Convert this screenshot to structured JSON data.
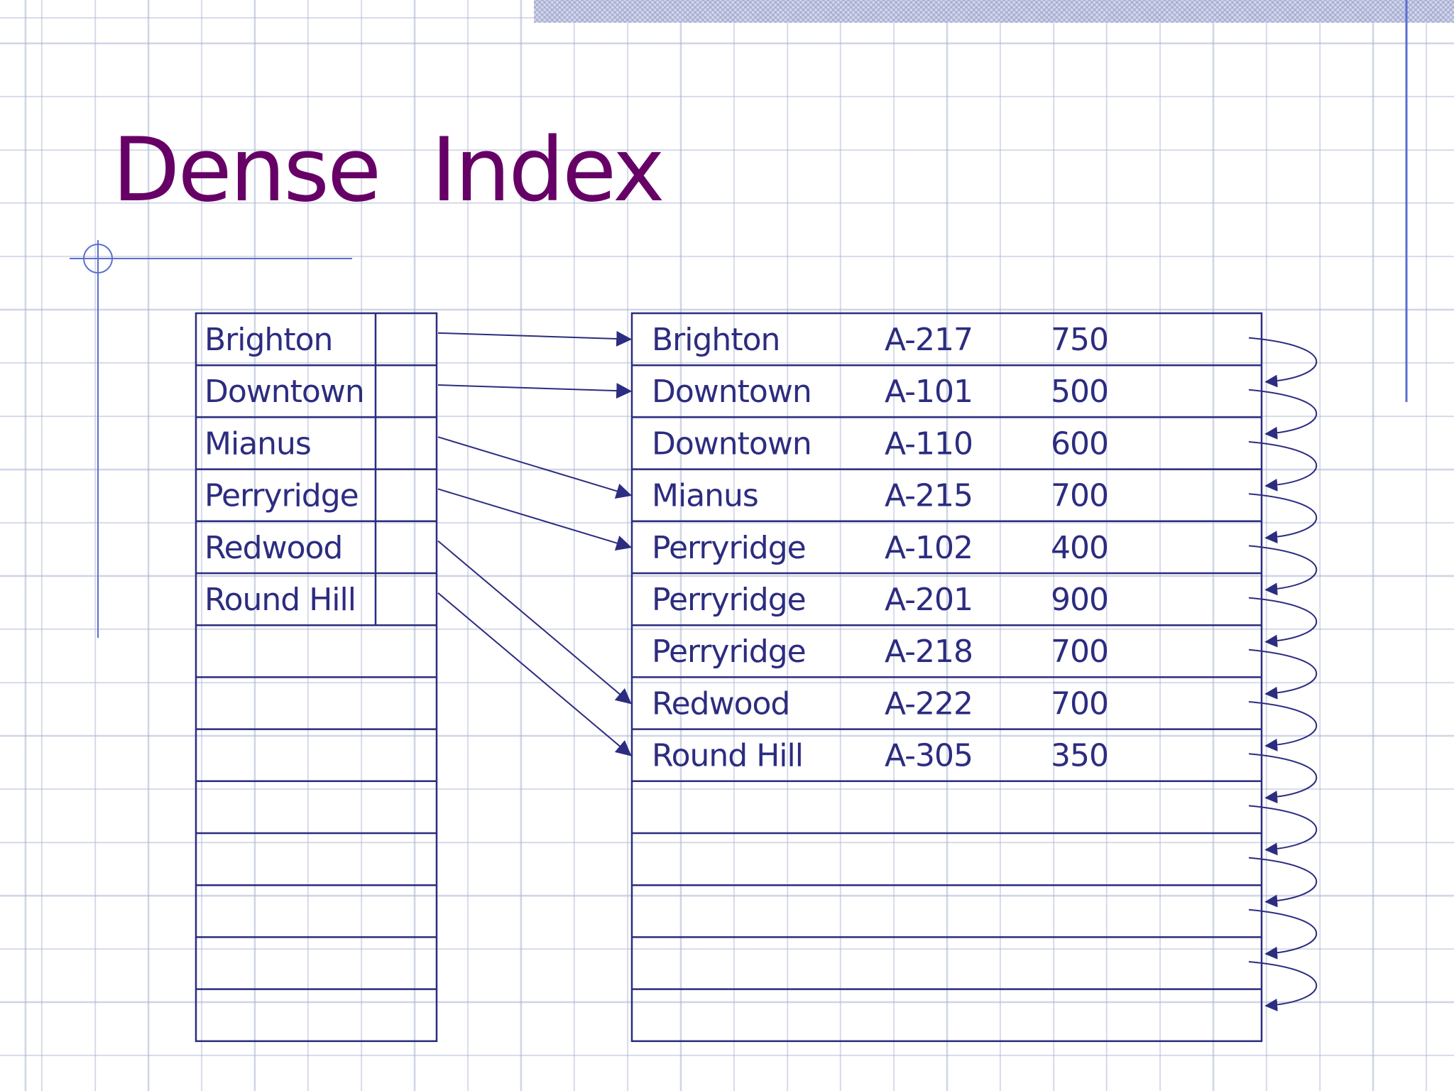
{
  "title": "Dense  Index",
  "index_entries": [
    {
      "key": "Brighton",
      "target": 0
    },
    {
      "key": "Downtown",
      "target": 1
    },
    {
      "key": "Mianus",
      "target": 3
    },
    {
      "key": "Perryridge",
      "target": 4
    },
    {
      "key": "Redwood",
      "target": 7
    },
    {
      "key": "Round Hill",
      "target": 8
    }
  ],
  "index_empty_rows": 8,
  "records": [
    {
      "branch": "Brighton",
      "account": "A-217",
      "balance": "750"
    },
    {
      "branch": "Downtown",
      "account": "A-101",
      "balance": "500"
    },
    {
      "branch": "Downtown",
      "account": "A-110",
      "balance": "600"
    },
    {
      "branch": "Mianus",
      "account": "A-215",
      "balance": "700"
    },
    {
      "branch": "Perryridge",
      "account": "A-102",
      "balance": "400"
    },
    {
      "branch": "Perryridge",
      "account": "A-201",
      "balance": "900"
    },
    {
      "branch": "Perryridge",
      "account": "A-218",
      "balance": "700"
    },
    {
      "branch": "Redwood",
      "account": "A-222",
      "balance": "700"
    },
    {
      "branch": "Round Hill",
      "account": "A-305",
      "balance": "350"
    }
  ],
  "record_empty_rows": 5,
  "colors": {
    "title": "#660066",
    "line": "#2c2c80",
    "text": "#2c2c80",
    "guide": "#5b6fd0"
  }
}
